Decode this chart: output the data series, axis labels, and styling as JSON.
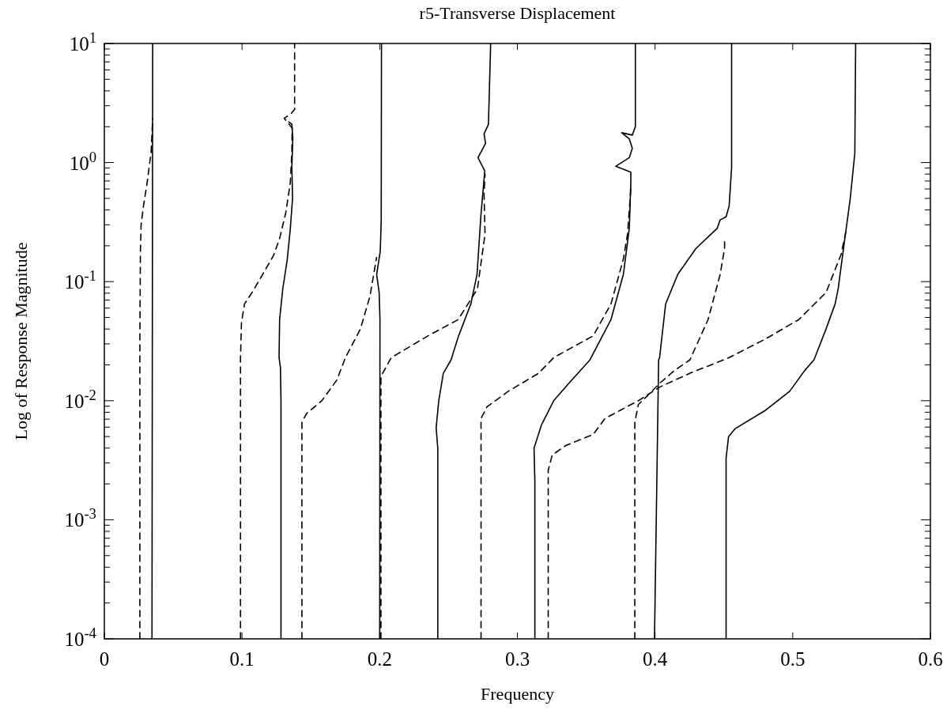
{
  "chart_data": {
    "type": "line",
    "title": "r5-Transverse Displacement",
    "xlabel": "Frequency",
    "ylabel": "Log of Response Magnitude",
    "log": "y",
    "grid": false,
    "xlim": [
      0,
      0.6
    ],
    "xticks": [
      0,
      0.1,
      0.2,
      0.3,
      0.4,
      0.5,
      0.6
    ],
    "ylim": [
      0.0001,
      10
    ],
    "yticks": [
      {
        "value": 0.0001,
        "label": "10$^{-4}$"
      },
      {
        "value": 0.0002,
        "label": null
      },
      {
        "value": 0.0003,
        "label": null
      },
      {
        "value": 0.0004,
        "label": null
      },
      {
        "value": 0.0005,
        "label": null
      },
      {
        "value": 0.0006,
        "label": null
      },
      {
        "value": 0.0007,
        "label": null
      },
      {
        "value": 0.0008,
        "label": null
      },
      {
        "value": 0.0009,
        "label": null
      },
      {
        "value": 0.001,
        "label": "10$^{-3}$"
      },
      {
        "value": 0.002,
        "label": null
      },
      {
        "value": 0.003,
        "label": null
      },
      {
        "value": 0.004,
        "label": null
      },
      {
        "value": 0.005,
        "label": null
      },
      {
        "value": 0.006,
        "label": null
      },
      {
        "value": 0.007,
        "label": null
      },
      {
        "value": 0.008,
        "label": null
      },
      {
        "value": 0.009,
        "label": null
      },
      {
        "value": 0.01,
        "label": "10$^{-2}$"
      },
      {
        "value": 0.02,
        "label": null
      },
      {
        "value": 0.03,
        "label": null
      },
      {
        "value": 0.04,
        "label": null
      },
      {
        "value": 0.05,
        "label": null
      },
      {
        "value": 0.06,
        "label": null
      },
      {
        "value": 0.07,
        "label": null
      },
      {
        "value": 0.08,
        "label": null
      },
      {
        "value": 0.09,
        "label": null
      },
      {
        "value": 0.1,
        "label": "10$^{-1}$"
      },
      {
        "value": 0.2,
        "label": null
      },
      {
        "value": 0.3,
        "label": null
      },
      {
        "value": 0.4,
        "label": null
      },
      {
        "value": 0.5,
        "label": null
      },
      {
        "value": 0.6,
        "label": null
      },
      {
        "value": 0.7,
        "label": null
      },
      {
        "value": 0.8,
        "label": null
      },
      {
        "value": 0.9,
        "label": null
      },
      {
        "value": 1,
        "label": "10$^{0}$"
      },
      {
        "value": 2,
        "label": null
      },
      {
        "value": 3,
        "label": null
      },
      {
        "value": 4,
        "label": null
      },
      {
        "value": 5,
        "label": null
      },
      {
        "value": 6,
        "label": null
      },
      {
        "value": 7,
        "label": null
      },
      {
        "value": 8,
        "label": null
      },
      {
        "value": 9,
        "label": null
      },
      {
        "value": 10,
        "label": "10$^{1}$"
      }
    ],
    "series": [
      {
        "color": "#000000",
        "line_style": "solid",
        "x": [
          0.0346,
          0.0351
        ],
        "values": [
          0.0001,
          10
        ]
      },
      {
        "color": "#000000",
        "line_style": "dashed",
        "x": [
          0.0258,
          0.0258,
          0.0262,
          0.0267,
          0.0284,
          0.0311,
          0.034,
          0.0351
        ],
        "values": [
          0.0001,
          0.032,
          0.18,
          0.3,
          0.43,
          0.68,
          1.23,
          2.35
        ]
      },
      {
        "color": "#000000",
        "line_style": "dashed",
        "x": [
          0.0989,
          0.0989,
          0.0996,
          0.1018,
          0.1073,
          0.115,
          0.1229,
          0.1273,
          0.1318,
          0.1351,
          0.1362,
          0.1364,
          0.1307,
          0.136,
          0.1382,
          0.1382
        ],
        "values": [
          0.0001,
          0.023,
          0.045,
          0.065,
          0.081,
          0.115,
          0.166,
          0.23,
          0.38,
          0.68,
          1.23,
          1.95,
          2.35,
          2.6,
          2.8,
          10
        ]
      },
      {
        "color": "#000000",
        "line_style": "solid",
        "x": [
          0.1283,
          0.1283,
          0.1279,
          0.1269,
          0.1273,
          0.1296,
          0.1329,
          0.1351,
          0.1367,
          0.1362,
          0.1369,
          0.1362,
          0.134
        ],
        "values": [
          0.0001,
          0.01,
          0.019,
          0.023,
          0.048,
          0.087,
          0.155,
          0.28,
          0.5,
          0.91,
          1.6,
          2.1,
          2.2
        ]
      },
      {
        "color": "#000000",
        "line_style": "solid",
        "x": [
          0.2013,
          0.2011,
          0.2004,
          0.1978,
          0.1996,
          0.2002,
          0.2
        ],
        "values": [
          10,
          0.32,
          0.18,
          0.115,
          0.081,
          0.048,
          0.0001
        ]
      },
      {
        "color": "#000000",
        "line_style": "dashed",
        "x": [
          0.2009,
          0.2009,
          0.2084,
          0.235,
          0.257,
          0.271,
          0.2765,
          0.2758,
          0.2765
        ],
        "values": [
          0.0001,
          0.016,
          0.023,
          0.035,
          0.048,
          0.087,
          0.25,
          0.54,
          0.8
        ]
      },
      {
        "color": "#000000",
        "line_style": "dashed",
        "x": [
          0.1435,
          0.1435,
          0.1469,
          0.158,
          0.169,
          0.1751,
          0.186,
          0.193,
          0.1969,
          0.1978
        ],
        "values": [
          0.0001,
          0.0066,
          0.0078,
          0.01,
          0.015,
          0.023,
          0.04,
          0.076,
          0.14,
          0.16
        ]
      },
      {
        "color": "#000000",
        "line_style": "solid",
        "x": [
          0.2422,
          0.2422,
          0.241,
          0.2429,
          0.2462,
          0.2518,
          0.2573,
          0.2662,
          0.2707,
          0.2736,
          0.2763,
          0.2714,
          0.2769,
          0.2758,
          0.279,
          0.2806
        ],
        "values": [
          0.0001,
          0.004,
          0.0059,
          0.01,
          0.017,
          0.022,
          0.035,
          0.065,
          0.115,
          0.37,
          0.85,
          1.1,
          1.45,
          1.74,
          2.1,
          10
        ]
      },
      {
        "color": "#000000",
        "line_style": "dashed",
        "x": [
          0.2736,
          0.2736,
          0.278,
          0.2934,
          0.3154,
          0.3264,
          0.355,
          0.368,
          0.377,
          0.38,
          0.3824
        ],
        "values": [
          0.0001,
          0.0071,
          0.0089,
          0.012,
          0.017,
          0.023,
          0.035,
          0.065,
          0.155,
          0.25,
          0.6
        ]
      },
      {
        "color": "#000000",
        "line_style": "solid",
        "x": [
          0.3127,
          0.3127,
          0.3121,
          0.3176,
          0.3264,
          0.3374,
          0.3527,
          0.368,
          0.377,
          0.3813,
          0.3824,
          0.3824,
          0.3714,
          0.3813,
          0.3835,
          0.3813,
          0.3758,
          0.3835,
          0.3857,
          0.3857
        ],
        "values": [
          0.0001,
          0.0021,
          0.004,
          0.0063,
          0.01,
          0.014,
          0.022,
          0.048,
          0.115,
          0.28,
          0.68,
          0.83,
          0.93,
          1.1,
          1.32,
          1.58,
          1.78,
          1.7,
          2,
          10
        ]
      },
      {
        "color": "#000000",
        "line_style": "dashed",
        "x": [
          0.3224,
          0.3224,
          0.3253,
          0.3352,
          0.355,
          0.3637,
          0.3747,
          0.3879,
          0.4033,
          0.4253,
          0.4538,
          0.4802,
          0.5044,
          0.5242,
          0.5352,
          0.5385
        ],
        "values": [
          0.0001,
          0.0026,
          0.0035,
          0.0042,
          0.0052,
          0.0071,
          0.0083,
          0.01,
          0.013,
          0.017,
          0.023,
          0.033,
          0.048,
          0.081,
          0.17,
          0.26
        ]
      },
      {
        "color": "#000000",
        "line_style": "dashed",
        "x": [
          0.3853,
          0.3853,
          0.3879,
          0.3945,
          0.4033,
          0.4143,
          0.4253,
          0.4385,
          0.4473,
          0.4505,
          0.4505
        ],
        "values": [
          0.0001,
          0.0066,
          0.0093,
          0.011,
          0.014,
          0.018,
          0.022,
          0.048,
          0.115,
          0.19,
          0.23
        ]
      },
      {
        "color": "#000000",
        "line_style": "solid",
        "x": [
          0.3996,
          0.4026,
          0.4033,
          0.4077,
          0.4165,
          0.4297,
          0.4451,
          0.4473,
          0.4516,
          0.4538,
          0.4556,
          0.4556
        ],
        "values": [
          0.0001,
          0.022,
          0.023,
          0.065,
          0.115,
          0.19,
          0.28,
          0.33,
          0.35,
          0.43,
          0.91,
          10
        ]
      },
      {
        "color": "#000000",
        "line_style": "solid",
        "x": [
          0.4516,
          0.4516,
          0.4534,
          0.458,
          0.4802,
          0.4978,
          0.5088,
          0.5154,
          0.5242,
          0.5308,
          0.533,
          0.5374,
          0.5418,
          0.5451,
          0.5457
        ],
        "values": [
          0.0001,
          0.0033,
          0.005,
          0.0058,
          0.0083,
          0.012,
          0.018,
          0.022,
          0.04,
          0.065,
          0.087,
          0.21,
          0.5,
          1.2,
          10
        ]
      }
    ]
  }
}
